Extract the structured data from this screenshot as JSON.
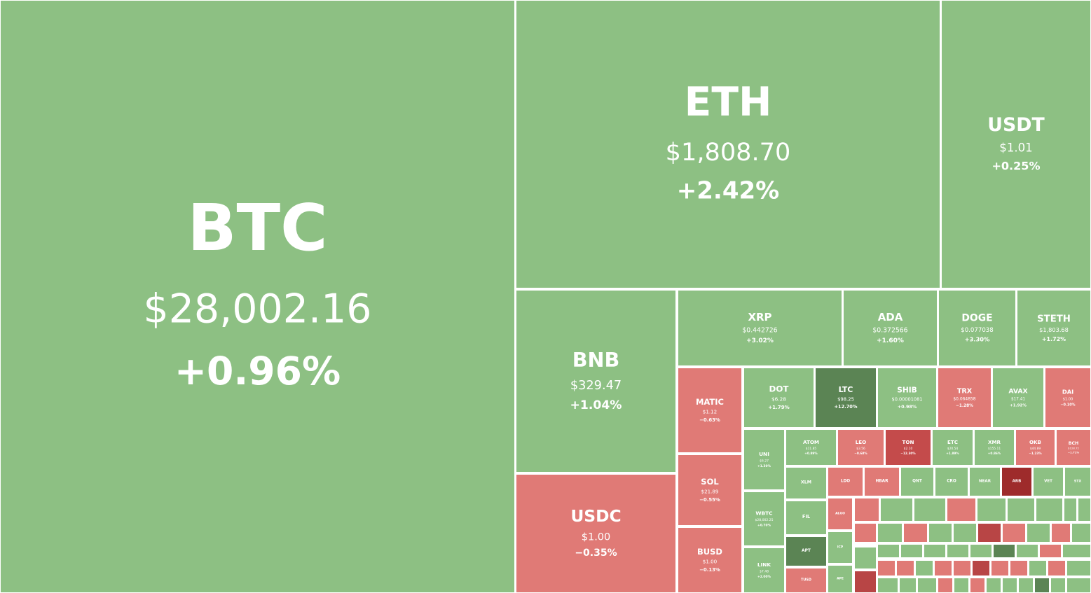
{
  "tiles": [
    {
      "symbol": "BTC",
      "price": "$28,002.16",
      "change": "+0.96%",
      "color": "#8dc083"
    },
    {
      "symbol": "ETH",
      "price": "$1,808.70",
      "change": "+2.42%",
      "color": "#8dc083"
    },
    {
      "symbol": "USDT",
      "price": "$1.01",
      "change": "+0.25%",
      "color": "#8dc083"
    },
    {
      "symbol": "BNB",
      "price": "$329.47",
      "change": "+1.04%",
      "color": "#8dc083"
    },
    {
      "symbol": "USDC",
      "price": "$1.00",
      "change": "−0.35%",
      "color": "#e07a76"
    },
    {
      "symbol": "XRP",
      "price": "$0.442726",
      "change": "+3.02%",
      "color": "#8dc083"
    },
    {
      "symbol": "ADA",
      "price": "$0.372566",
      "change": "+1.60%",
      "color": "#8dc083"
    },
    {
      "symbol": "DOGE",
      "price": "$0.077038",
      "change": "+3.30%",
      "color": "#8dc083"
    },
    {
      "symbol": "STETH",
      "price": "$1,803.68",
      "change": "+1.72%",
      "color": "#8dc083"
    },
    {
      "symbol": "MATIC",
      "price": "$1.12",
      "change": "−0.63%",
      "color": "#e07a76"
    },
    {
      "symbol": "SOL",
      "price": "$21.89",
      "change": "−0.55%",
      "color": "#e07a76"
    },
    {
      "symbol": "BUSD",
      "price": "$1.00",
      "change": "−0.13%",
      "color": "#e07a76"
    },
    {
      "symbol": "DOT",
      "price": "$6.28",
      "change": "+1.79%",
      "color": "#8dc083"
    },
    {
      "symbol": "LTC",
      "price": "$98.25",
      "change": "+12.70%",
      "color": "#5b8454"
    },
    {
      "symbol": "SHIB",
      "price": "$0.00001081",
      "change": "+0.98%",
      "color": "#8dc083"
    },
    {
      "symbol": "TRX",
      "price": "$0.064858",
      "change": "−1.28%",
      "color": "#e07a76"
    },
    {
      "symbol": "AVAX",
      "price": "$17.41",
      "change": "+1.92%",
      "color": "#8dc083"
    },
    {
      "symbol": "DAI",
      "price": "$1.00",
      "change": "−0.10%",
      "color": "#e07a76"
    },
    {
      "symbol": "UNI",
      "price": "$6.27",
      "change": "+1.30%",
      "color": "#8dc083"
    },
    {
      "symbol": "WBTC",
      "price": "$28,002.25",
      "change": "+0.70%",
      "color": "#8dc083"
    },
    {
      "symbol": "LINK",
      "price": "$7.48",
      "change": "+2.00%",
      "color": "#8dc083"
    },
    {
      "symbol": "ATOM",
      "price": "$11.85",
      "change": "+0.89%",
      "color": "#8dc083"
    },
    {
      "symbol": "LEO",
      "price": "$3.56",
      "change": "−0.68%",
      "color": "#e07a76"
    },
    {
      "symbol": "TON",
      "price": "$2.10",
      "change": "−12.30%",
      "color": "#c44b4b"
    },
    {
      "symbol": "ETC",
      "price": "$20.54",
      "change": "+1.89%",
      "color": "#8dc083"
    },
    {
      "symbol": "XMR",
      "price": "$155.11",
      "change": "+0.86%",
      "color": "#8dc083"
    },
    {
      "symbol": "OKB",
      "price": "$44.89",
      "change": "−1.23%",
      "color": "#e07a76"
    },
    {
      "symbol": "BCH",
      "price": "$128.72",
      "change": "−1.71%",
      "color": "#e07a76"
    },
    {
      "symbol": "XLM",
      "color": "#8dc083"
    },
    {
      "symbol": "FIL",
      "color": "#8dc083"
    },
    {
      "symbol": "APT",
      "color": "#5b8454"
    },
    {
      "symbol": "TUSD",
      "color": "#e07a76"
    },
    {
      "symbol": "LDO",
      "color": "#e07a76"
    },
    {
      "symbol": "HBAR",
      "color": "#e07a76"
    },
    {
      "symbol": "QNT",
      "color": "#8dc083"
    },
    {
      "symbol": "CRO",
      "color": "#8dc083"
    },
    {
      "symbol": "NEAR",
      "color": "#8dc083"
    },
    {
      "symbol": "ARB",
      "color": "#9e2b2b"
    },
    {
      "symbol": "VET",
      "color": "#8dc083"
    },
    {
      "symbol": "STX",
      "color": "#8dc083"
    },
    {
      "symbol": "ALGO",
      "color": "#e07a76"
    },
    {
      "symbol": "ICP",
      "color": "#8dc083"
    },
    {
      "symbol": "APE",
      "color": "#8dc083"
    }
  ]
}
